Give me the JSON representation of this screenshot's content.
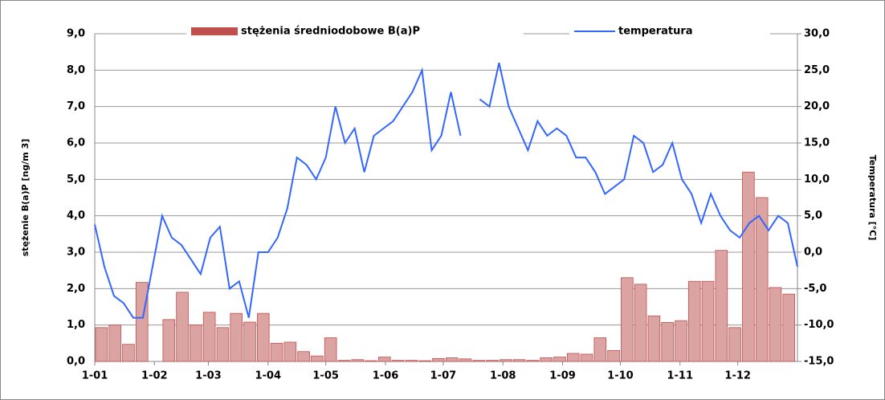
{
  "chart_data": {
    "type": "bar-line",
    "series": [
      {
        "name": "stężenia średniodobowe B(a)P",
        "type": "bar",
        "color": "#c0504d",
        "x": [
          0,
          7,
          14,
          21,
          28,
          35,
          42,
          49,
          56,
          63,
          70,
          77,
          84,
          91,
          98,
          105,
          112,
          119,
          126,
          133,
          140,
          147,
          154,
          161,
          168,
          175,
          182,
          189,
          196,
          203,
          210,
          217,
          224,
          231,
          238,
          245,
          252,
          259,
          266,
          273,
          280,
          287,
          294,
          301,
          308,
          315,
          322,
          329,
          336,
          343,
          350,
          357
        ],
        "values": [
          0.93,
          1.0,
          0.47,
          2.17,
          0.0,
          1.15,
          1.9,
          1.0,
          1.35,
          0.93,
          1.32,
          1.08,
          1.32,
          0.5,
          0.53,
          0.27,
          0.15,
          0.65,
          0.03,
          0.05,
          0.02,
          0.12,
          0.03,
          0.03,
          0.02,
          0.08,
          0.1,
          0.07,
          0.03,
          0.03,
          0.05,
          0.05,
          0.03,
          0.1,
          0.12,
          0.22,
          0.2,
          0.65,
          0.3,
          2.3,
          2.12,
          1.25,
          1.07,
          1.12,
          2.2,
          2.2,
          3.05,
          0.93,
          5.2,
          4.5,
          2.03,
          1.85
        ]
      },
      {
        "name": "temperatura",
        "type": "line",
        "axis": "y2",
        "color": "#3366ff",
        "x": [
          0,
          5,
          10,
          15,
          20,
          25,
          30,
          35,
          40,
          45,
          50,
          55,
          60,
          65,
          70,
          75,
          80,
          85,
          90,
          95,
          100,
          105,
          110,
          115,
          120,
          125,
          130,
          135,
          140,
          145,
          150,
          155,
          160,
          165,
          170,
          175,
          180,
          185,
          190,
          195,
          200,
          205,
          210,
          215,
          220,
          225,
          230,
          235,
          240,
          245,
          250,
          255,
          260,
          265,
          270,
          275,
          280,
          285,
          290,
          295,
          300,
          305,
          310,
          315,
          320,
          325,
          330,
          335,
          340,
          345,
          350,
          355,
          360,
          365
        ],
        "values": [
          3.8,
          -2,
          -6,
          -7,
          -9,
          -9,
          -2,
          5,
          2,
          1,
          -1,
          -3,
          2,
          3.5,
          -5,
          -4,
          -9,
          0,
          0,
          2,
          6,
          13,
          12,
          10,
          13,
          20,
          15,
          17,
          11,
          16,
          17,
          18,
          20,
          22,
          25,
          14,
          16,
          22,
          16,
          null,
          21,
          20,
          26,
          20,
          17,
          14,
          18,
          16,
          17,
          16,
          13,
          13,
          11,
          8,
          9,
          10,
          16,
          15,
          11,
          12,
          15,
          10,
          8,
          4,
          8,
          5,
          3,
          2,
          4,
          5,
          3,
          5,
          4,
          -2
        ]
      }
    ],
    "xlim": [
      0,
      365
    ],
    "xticks": [
      {
        "value": 0,
        "label": "1-01"
      },
      {
        "value": 31,
        "label": "1-02"
      },
      {
        "value": 59,
        "label": "1-03"
      },
      {
        "value": 90,
        "label": "1-04"
      },
      {
        "value": 120,
        "label": "1-05"
      },
      {
        "value": 151,
        "label": "1-06"
      },
      {
        "value": 181,
        "label": "1-07"
      },
      {
        "value": 212,
        "label": "1-08"
      },
      {
        "value": 243,
        "label": "1-09"
      },
      {
        "value": 273,
        "label": "1-10"
      },
      {
        "value": 304,
        "label": "1-11"
      },
      {
        "value": 334,
        "label": "1-12"
      }
    ],
    "ylim": [
      0,
      9
    ],
    "yticks": [
      {
        "value": 0,
        "label": "0,0"
      },
      {
        "value": 1,
        "label": "1,0"
      },
      {
        "value": 2,
        "label": "2,0"
      },
      {
        "value": 3,
        "label": "3,0"
      },
      {
        "value": 4,
        "label": "4,0"
      },
      {
        "value": 5,
        "label": "5,0"
      },
      {
        "value": 6,
        "label": "6,0"
      },
      {
        "value": 7,
        "label": "7,0"
      },
      {
        "value": 8,
        "label": "8,0"
      },
      {
        "value": 9,
        "label": "9,0"
      }
    ],
    "y2lim": [
      -15,
      30
    ],
    "y2ticks": [
      {
        "value": -15,
        "label": "-15,0"
      },
      {
        "value": -10,
        "label": "-10,0"
      },
      {
        "value": -5,
        "label": "-5,0"
      },
      {
        "value": 0,
        "label": "0,0"
      },
      {
        "value": 5,
        "label": "5,0"
      },
      {
        "value": 10,
        "label": "10,0"
      },
      {
        "value": 15,
        "label": "15,0"
      },
      {
        "value": 20,
        "label": "20,0"
      },
      {
        "value": 25,
        "label": "25,0"
      },
      {
        "value": 30,
        "label": "30,0"
      }
    ],
    "ylabel": "stężenie B(a)P [ng/m 3]",
    "y2label": "Temperatura [°C]",
    "grid": true,
    "legend": "top"
  }
}
